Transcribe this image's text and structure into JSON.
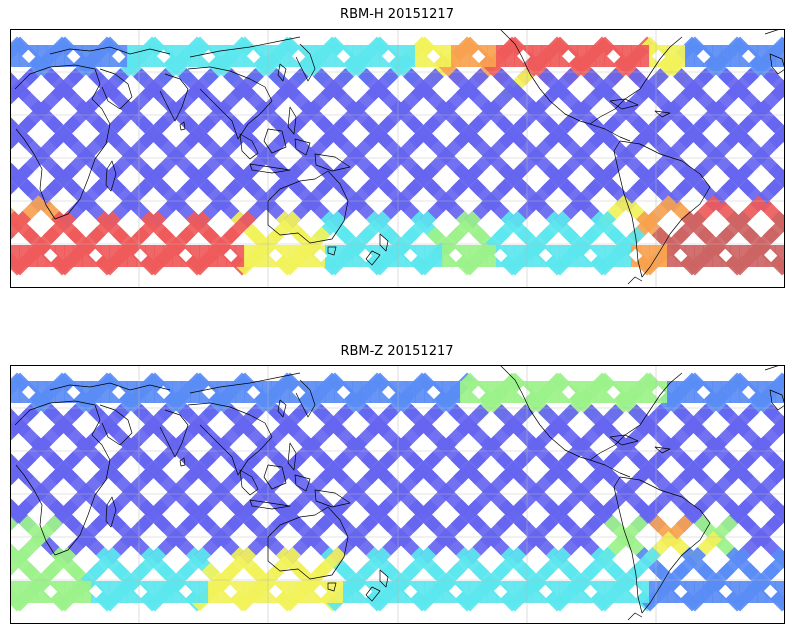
{
  "panels": [
    {
      "title": "RBM-H 20151217",
      "variant": "H"
    },
    {
      "title": "RBM-Z 20151217",
      "variant": "Z"
    }
  ],
  "colors": {
    "low": "#6565f0",
    "low2": "#5a8cf5",
    "mid": "#5ce6ee",
    "midgreen": "#9cf28a",
    "yellow": "#f2f25a",
    "orange": "#f7a24f",
    "high": "#ef5a5a",
    "veryhigh": "#cd6464"
  }
}
